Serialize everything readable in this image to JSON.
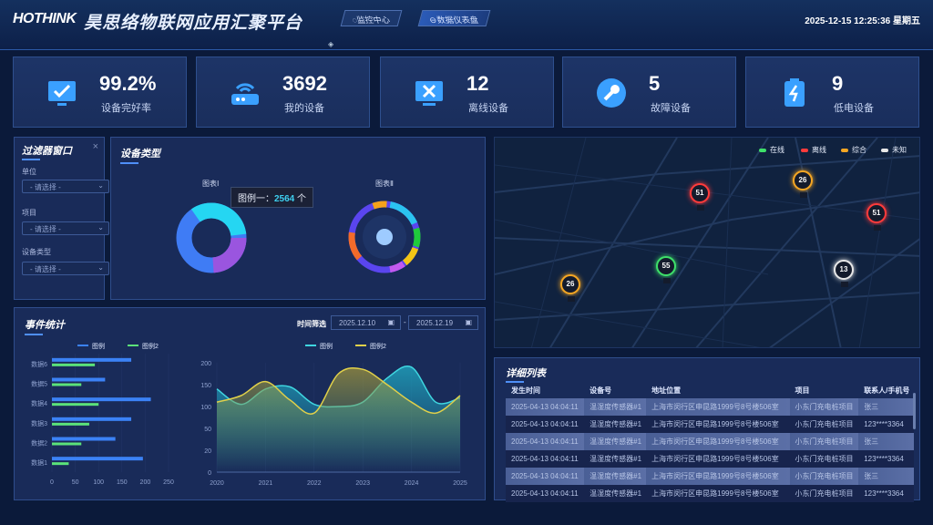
{
  "header": {
    "logo": "HOTHINK",
    "title": "昊思络物联网应用汇聚平台",
    "nav": [
      {
        "label": "监控中心",
        "icon": "monitor-icon"
      },
      {
        "label": "数据仪表盘",
        "icon": "dashboard-icon"
      }
    ],
    "datetime": "2025-12-15 12:25:36 星期五"
  },
  "stats": [
    {
      "value": "99.2%",
      "label": "设备完好率",
      "icon": "monitor-check-icon"
    },
    {
      "value": "3692",
      "label": "我的设备",
      "icon": "router-icon"
    },
    {
      "value": "12",
      "label": "离线设备",
      "icon": "offline-screen-icon"
    },
    {
      "value": "5",
      "label": "故障设备",
      "icon": "wrench-icon"
    },
    {
      "value": "9",
      "label": "低电设备",
      "icon": "battery-low-icon"
    }
  ],
  "filter": {
    "title": "过滤器窗口",
    "fields": [
      {
        "label": "单位",
        "placeholder": "- 请选择 -"
      },
      {
        "label": "项目",
        "placeholder": "- 请选择 -"
      },
      {
        "label": "设备类型",
        "placeholder": "- 请选择 -"
      }
    ]
  },
  "device_type": {
    "title": "设备类型",
    "chart1_title": "图表Ⅰ",
    "chart2_title": "图表Ⅱ",
    "tooltip_label": "图例一：",
    "tooltip_value": "2564",
    "tooltip_unit": "个"
  },
  "map": {
    "legend": [
      {
        "label": "在线",
        "color": "#3ee06a"
      },
      {
        "label": "离线",
        "color": "#ff3b3b"
      },
      {
        "label": "综合",
        "color": "#f5a623"
      },
      {
        "label": "未知",
        "color": "#e8e8e8"
      }
    ],
    "markers": [
      {
        "value": "51",
        "status": "离线"
      },
      {
        "value": "26",
        "status": "综合"
      },
      {
        "value": "51",
        "status": "离线"
      },
      {
        "value": "55",
        "status": "在线"
      },
      {
        "value": "13",
        "status": "未知"
      },
      {
        "value": "26",
        "status": "综合"
      }
    ]
  },
  "events": {
    "title": "事件统计",
    "time_filter_label": "时间筛选",
    "start_date": "2025.12.10",
    "end_date": "2025.12.19",
    "separator": "-"
  },
  "chart_data": [
    {
      "type": "bar",
      "orientation": "horizontal",
      "categories": [
        "数据1",
        "数据2",
        "数据3",
        "数据4",
        "数据5",
        "数据6"
      ],
      "series": [
        {
          "name": "图例",
          "color": "#3b82f6",
          "values": [
            195,
            136,
            170,
            212,
            114,
            170
          ]
        },
        {
          "name": "图例2",
          "color": "#5be37a",
          "values": [
            36,
            63,
            80,
            100,
            63,
            92
          ]
        }
      ],
      "xlim": [
        0,
        250
      ],
      "xticks": [
        0,
        50,
        100,
        150,
        200,
        250
      ]
    },
    {
      "type": "area",
      "x": [
        2020,
        2020.5,
        2021,
        2021.5,
        2022,
        2022.5,
        2023,
        2023.5,
        2024,
        2024.5,
        2025
      ],
      "series": [
        {
          "name": "图例",
          "color": "#3fd6e0",
          "values": [
            140,
            105,
            140,
            145,
            105,
            100,
            110,
            165,
            190,
            110,
            120
          ]
        },
        {
          "name": "图例2",
          "color": "#e0d04a",
          "values": [
            110,
            125,
            157,
            115,
            85,
            175,
            185,
            150,
            110,
            85,
            125
          ]
        }
      ],
      "yticks": [
        0,
        20,
        50,
        100,
        150,
        200
      ],
      "xticks": [
        2020,
        2021,
        2022,
        2023,
        2024,
        2025
      ]
    }
  ],
  "detail": {
    "title": "详细列表",
    "columns": [
      "发生时间",
      "设备号",
      "地址位置",
      "项目",
      "联系人/手机号"
    ],
    "rows": [
      [
        "2025-04-13 04:04:11",
        "温湿度传感器#1",
        "上海市闵行区申昆路1999号8号楼506室",
        "小东门充电桩项目",
        "张三"
      ],
      [
        "2025-04-13 04:04:11",
        "温湿度传感器#1",
        "上海市闵行区申昆路1999号8号楼506室",
        "小东门充电桩项目",
        "123****3364"
      ],
      [
        "2025-04-13 04:04:11",
        "温湿度传感器#1",
        "上海市闵行区申昆路1999号8号楼506室",
        "小东门充电桩项目",
        "张三"
      ],
      [
        "2025-04-13 04:04:11",
        "温湿度传感器#1",
        "上海市闵行区申昆路1999号8号楼506室",
        "小东门充电桩项目",
        "123****3364"
      ],
      [
        "2025-04-13 04:04:11",
        "温湿度传感器#1",
        "上海市闵行区申昆路1999号8号楼506室",
        "小东门充电桩项目",
        "张三"
      ],
      [
        "2025-04-13 04:04:11",
        "温湿度传感器#1",
        "上海市闵行区申昆路1999号8号楼506室",
        "小东门充电桩项目",
        "123****3364"
      ]
    ]
  }
}
